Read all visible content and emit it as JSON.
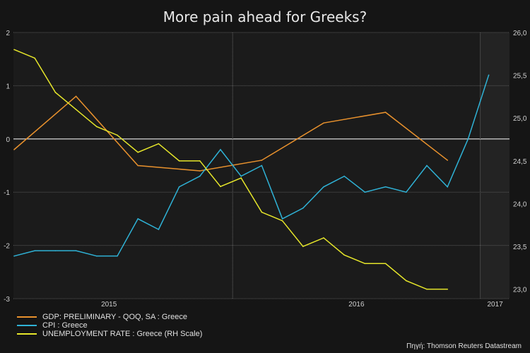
{
  "chart_data": {
    "type": "line",
    "title": "More pain ahead for Greeks?",
    "x_months": [
      "2015-02",
      "2015-03",
      "2015-04",
      "2015-05",
      "2015-06",
      "2015-07",
      "2015-08",
      "2015-09",
      "2015-10",
      "2015-11",
      "2015-12",
      "2016-01",
      "2016-02",
      "2016-03",
      "2016-04",
      "2016-05",
      "2016-06",
      "2016-07",
      "2016-08",
      "2016-09",
      "2016-10",
      "2016-11",
      "2016-12",
      "2017-01"
    ],
    "x_tick_labels": [
      "2015",
      "2016",
      "2017"
    ],
    "left_axis": {
      "ylim": [
        -3,
        2
      ],
      "ticks": [
        "2",
        "1",
        "0",
        "-1",
        "-2",
        "-3"
      ]
    },
    "right_axis": {
      "ylim": [
        22.89,
        26.0
      ],
      "ticks": [
        "26,0",
        "25,5",
        "25,0",
        "24,5",
        "24,0",
        "23,5",
        "23,0"
      ]
    },
    "grid": true,
    "legend_position": "bottom-left",
    "series": [
      {
        "name": "GDP: PRELIMINARY - QOQ, SA : Greece",
        "axis": "left",
        "color": "#e8912d",
        "x": [
          "2015-02",
          "2015-05",
          "2015-08",
          "2015-11",
          "2016-02",
          "2016-05",
          "2016-08",
          "2016-11"
        ],
        "values": [
          -0.2,
          0.8,
          -0.5,
          -0.6,
          -0.4,
          0.3,
          0.5,
          -0.4
        ]
      },
      {
        "name": "CPI : Greece",
        "axis": "left",
        "color": "#2fb2d6",
        "x": [
          "2015-02",
          "2015-03",
          "2015-04",
          "2015-05",
          "2015-06",
          "2015-07",
          "2015-08",
          "2015-09",
          "2015-10",
          "2015-11",
          "2015-12",
          "2016-01",
          "2016-02",
          "2016-03",
          "2016-04",
          "2016-05",
          "2016-06",
          "2016-07",
          "2016-08",
          "2016-09",
          "2016-10",
          "2016-11",
          "2016-12",
          "2017-01"
        ],
        "values": [
          -2.2,
          -2.1,
          -2.1,
          -2.1,
          -2.2,
          -2.2,
          -1.5,
          -1.7,
          -0.9,
          -0.7,
          -0.2,
          -0.7,
          -0.5,
          -1.5,
          -1.3,
          -0.9,
          -0.7,
          -1.0,
          -0.9,
          -1.0,
          -0.5,
          -0.9,
          0.0,
          1.2
        ]
      },
      {
        "name": "UNEMPLOYMENT RATE : Greece (RH Scale)",
        "axis": "right",
        "color": "#e6e62a",
        "x": [
          "2015-02",
          "2015-03",
          "2015-04",
          "2015-05",
          "2015-06",
          "2015-07",
          "2015-08",
          "2015-09",
          "2015-10",
          "2015-11",
          "2015-12",
          "2016-01",
          "2016-02",
          "2016-03",
          "2016-04",
          "2016-05",
          "2016-06",
          "2016-07",
          "2016-08",
          "2016-09",
          "2016-10",
          "2016-11"
        ],
        "values": [
          25.8,
          25.7,
          25.3,
          25.1,
          24.9,
          24.8,
          24.6,
          24.7,
          24.5,
          24.5,
          24.2,
          24.3,
          23.9,
          23.8,
          23.5,
          23.6,
          23.4,
          23.3,
          23.3,
          23.1,
          23.0,
          23.0
        ]
      }
    ]
  },
  "source": "Πηγή: Thomson Reuters Datastream"
}
